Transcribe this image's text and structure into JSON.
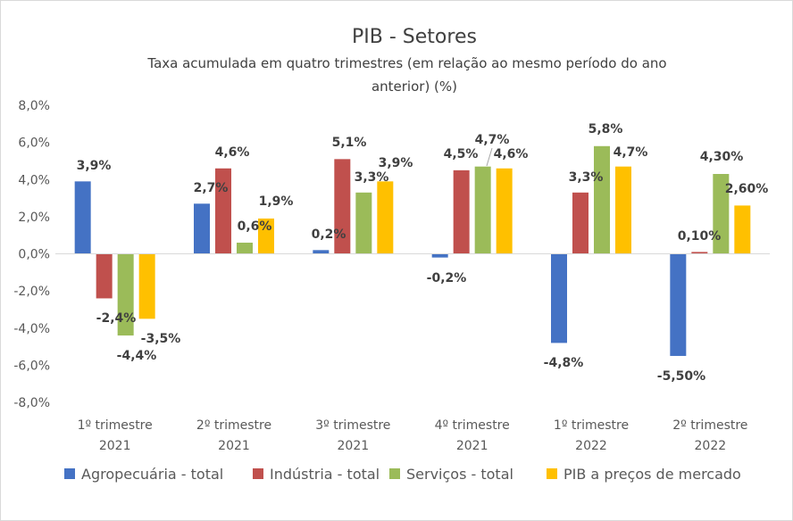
{
  "chart_data": {
    "type": "bar",
    "title": "PIB - Setores",
    "subtitle_lines": [
      "Taxa acumulada em quatro trimestres (em relação ao mesmo período do ano",
      "anterior) (%)"
    ],
    "categories": [
      [
        "1º trimestre",
        "2021"
      ],
      [
        "2º trimestre",
        "2021"
      ],
      [
        "3º trimestre",
        "2021"
      ],
      [
        "4º trimestre",
        "2021"
      ],
      [
        "1º trimestre",
        "2022"
      ],
      [
        "2º trimestre",
        "2022"
      ]
    ],
    "y_ticks": [
      "8,0%",
      "6,0%",
      "4,0%",
      "2,0%",
      "0,0%",
      "-2,0%",
      "-4,0%",
      "-6,0%",
      "-8,0%"
    ],
    "ylim": [
      -8,
      8
    ],
    "series": [
      {
        "name": "Agropecuária - total",
        "color": "#4472c4",
        "values": [
          3.9,
          2.7,
          0.2,
          -0.2,
          -4.8,
          -5.5
        ],
        "labels": [
          "3,9%",
          "2,7%",
          "0,2%",
          "-0,2%",
          "-4,8%",
          "-5,50%"
        ]
      },
      {
        "name": "Indústria - total",
        "color": "#c0504d",
        "values": [
          -2.4,
          4.6,
          5.1,
          4.5,
          3.3,
          0.1
        ],
        "labels": [
          "-2,4%",
          "4,6%",
          "5,1%",
          "4,5%",
          "3,3%",
          "0,10%"
        ]
      },
      {
        "name": "Serviços - total",
        "color": "#9bbb59",
        "values": [
          -4.4,
          0.6,
          3.3,
          4.7,
          5.8,
          4.3
        ],
        "labels": [
          "-4,4%",
          "0,6%",
          "3,3%",
          "4,7%",
          "5,8%",
          "4,30%"
        ]
      },
      {
        "name": "PIB a preços de mercado",
        "color": "#ffc000",
        "values": [
          -3.5,
          1.9,
          3.9,
          4.6,
          4.7,
          2.6
        ],
        "labels": [
          "-3,5%",
          "1,9%",
          "3,9%",
          "4,6%",
          "4,7%",
          "2,60%"
        ]
      }
    ],
    "legend_position": "bottom",
    "grid": false
  }
}
